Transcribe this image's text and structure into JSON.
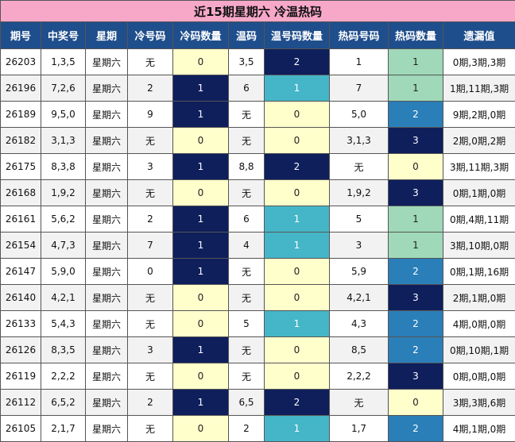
{
  "title": "近15期星期六 冷温热码",
  "headers": [
    "期号",
    "中奖号",
    "星期",
    "冷号码",
    "冷码数量",
    "温码",
    "温号码数量",
    "热码号码",
    "热码数量",
    "遗漏值"
  ],
  "colors": {
    "title_bg": "#f7a8c8",
    "header_bg": "#1f4e8c",
    "navy": "#0f1f5c",
    "teal": "#45b6c8",
    "green": "#9fd9b9",
    "blue": "#2a7fb8",
    "yellow": "#ffffcc"
  },
  "rows": [
    {
      "issue": "26203",
      "number": "1,3,5",
      "weekday": "星期六",
      "cold": "无",
      "cold_count": "0",
      "warm": "3,5",
      "warm_count": "2",
      "hot": "1",
      "hot_count": "1",
      "missing": "0期,3期,3期"
    },
    {
      "issue": "26196",
      "number": "7,2,6",
      "weekday": "星期六",
      "cold": "2",
      "cold_count": "1",
      "warm": "6",
      "warm_count": "1",
      "hot": "7",
      "hot_count": "1",
      "missing": "1期,11期,3期"
    },
    {
      "issue": "26189",
      "number": "9,5,0",
      "weekday": "星期六",
      "cold": "9",
      "cold_count": "1",
      "warm": "无",
      "warm_count": "0",
      "hot": "5,0",
      "hot_count": "2",
      "missing": "9期,2期,0期"
    },
    {
      "issue": "26182",
      "number": "3,1,3",
      "weekday": "星期六",
      "cold": "无",
      "cold_count": "0",
      "warm": "无",
      "warm_count": "0",
      "hot": "3,1,3",
      "hot_count": "3",
      "missing": "2期,0期,2期"
    },
    {
      "issue": "26175",
      "number": "8,3,8",
      "weekday": "星期六",
      "cold": "3",
      "cold_count": "1",
      "warm": "8,8",
      "warm_count": "2",
      "hot": "无",
      "hot_count": "0",
      "missing": "3期,11期,3期"
    },
    {
      "issue": "26168",
      "number": "1,9,2",
      "weekday": "星期六",
      "cold": "无",
      "cold_count": "0",
      "warm": "无",
      "warm_count": "0",
      "hot": "1,9,2",
      "hot_count": "3",
      "missing": "0期,1期,0期"
    },
    {
      "issue": "26161",
      "number": "5,6,2",
      "weekday": "星期六",
      "cold": "2",
      "cold_count": "1",
      "warm": "6",
      "warm_count": "1",
      "hot": "5",
      "hot_count": "1",
      "missing": "0期,4期,11期"
    },
    {
      "issue": "26154",
      "number": "4,7,3",
      "weekday": "星期六",
      "cold": "7",
      "cold_count": "1",
      "warm": "4",
      "warm_count": "1",
      "hot": "3",
      "hot_count": "1",
      "missing": "3期,10期,0期"
    },
    {
      "issue": "26147",
      "number": "5,9,0",
      "weekday": "星期六",
      "cold": "0",
      "cold_count": "1",
      "warm": "无",
      "warm_count": "0",
      "hot": "5,9",
      "hot_count": "2",
      "missing": "0期,1期,16期"
    },
    {
      "issue": "26140",
      "number": "4,2,1",
      "weekday": "星期六",
      "cold": "无",
      "cold_count": "0",
      "warm": "无",
      "warm_count": "0",
      "hot": "4,2,1",
      "hot_count": "3",
      "missing": "2期,1期,0期"
    },
    {
      "issue": "26133",
      "number": "5,4,3",
      "weekday": "星期六",
      "cold": "无",
      "cold_count": "0",
      "warm": "5",
      "warm_count": "1",
      "hot": "4,3",
      "hot_count": "2",
      "missing": "4期,0期,0期"
    },
    {
      "issue": "26126",
      "number": "8,3,5",
      "weekday": "星期六",
      "cold": "3",
      "cold_count": "1",
      "warm": "无",
      "warm_count": "0",
      "hot": "8,5",
      "hot_count": "2",
      "missing": "0期,10期,1期"
    },
    {
      "issue": "26119",
      "number": "2,2,2",
      "weekday": "星期六",
      "cold": "无",
      "cold_count": "0",
      "warm": "无",
      "warm_count": "0",
      "hot": "2,2,2",
      "hot_count": "3",
      "missing": "0期,0期,0期"
    },
    {
      "issue": "26112",
      "number": "6,5,2",
      "weekday": "星期六",
      "cold": "2",
      "cold_count": "1",
      "warm": "6,5",
      "warm_count": "2",
      "hot": "无",
      "hot_count": "0",
      "missing": "3期,3期,6期"
    },
    {
      "issue": "26105",
      "number": "2,1,7",
      "weekday": "星期六",
      "cold": "无",
      "cold_count": "0",
      "warm": "2",
      "warm_count": "1",
      "hot": "1,7",
      "hot_count": "2",
      "missing": "4期,1期,0期"
    }
  ]
}
